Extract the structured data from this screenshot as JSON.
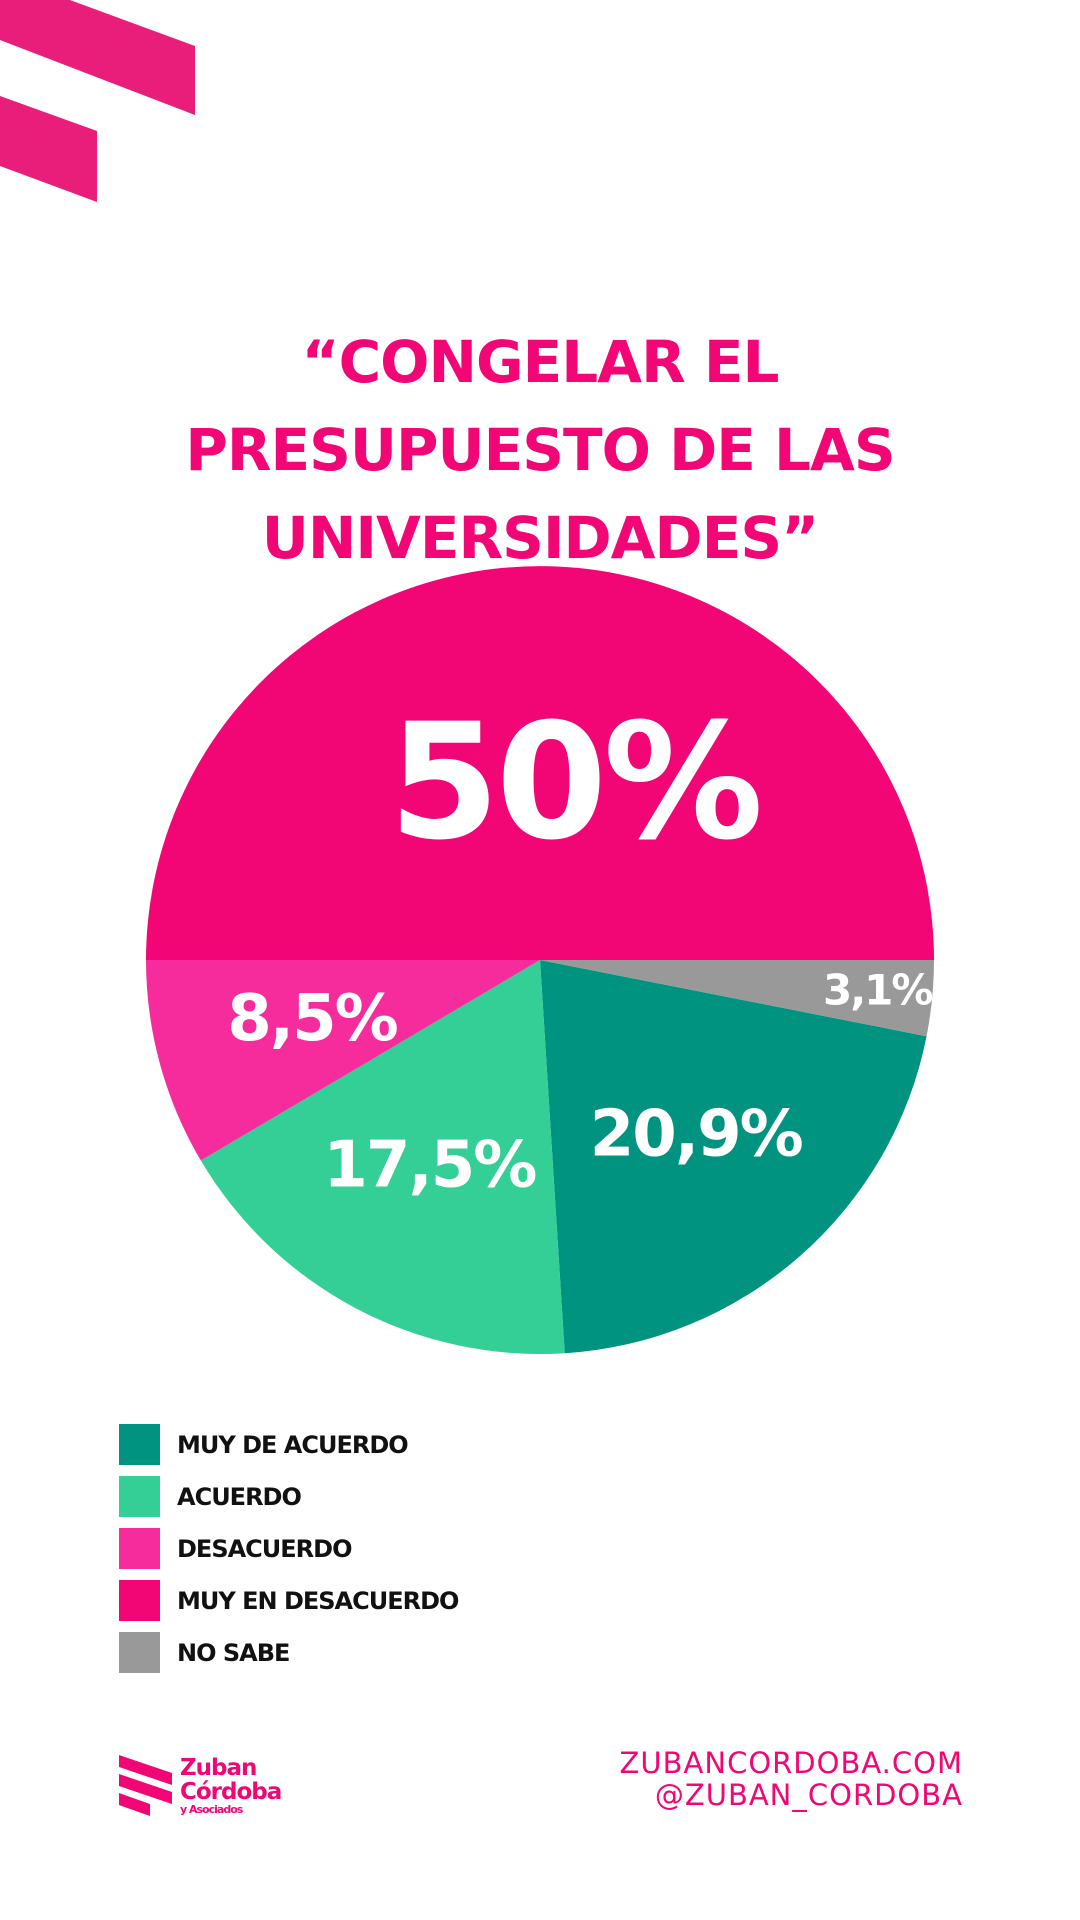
{
  "chart_data": {
    "type": "pie",
    "title": "“CONGELAR EL PRESUPUESTO DE LAS UNIVERSIDADES”",
    "categories": [
      "MUY DE ACUERDO",
      "ACUERDO",
      "DESACUERDO",
      "MUY EN DESACUERDO",
      "NO SABE"
    ],
    "values": [
      20.9,
      17.5,
      8.5,
      50,
      3.1
    ],
    "value_labels": [
      "20,9%",
      "17,5%",
      "8,5%",
      "50%",
      "3,1%"
    ],
    "colors": [
      "#009480",
      "#33cf96",
      "#f72c9c",
      "#f20574",
      "#999999"
    ]
  },
  "footer": {
    "logo_line1": "Zuban",
    "logo_line2": "Córdoba",
    "logo_line3": "y Asociados",
    "website": "ZUBANCORDOBA.COM",
    "twitter": "@ZUBAN_CORDOBA"
  }
}
